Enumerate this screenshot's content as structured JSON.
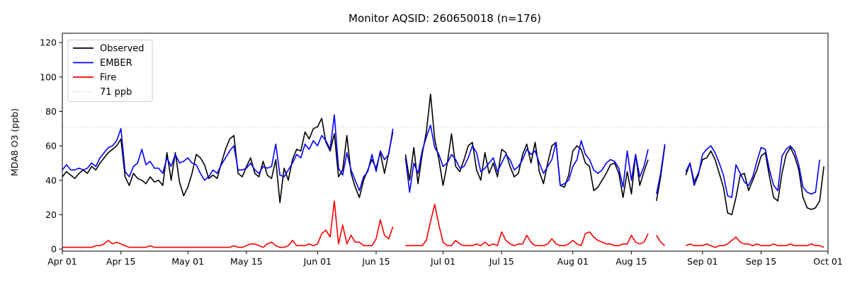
{
  "chart_data": {
    "type": "line",
    "title": "Monitor AQSID: 260650018 (n=176)",
    "ylabel": "MDA8 O3 (ppb)",
    "xlabel": "",
    "yticks": [
      0,
      20,
      40,
      60,
      80,
      100,
      120
    ],
    "ylim": [
      -1.2,
      125.4
    ],
    "x_total_days": 183,
    "xticks": [
      {
        "label": "Apr 01",
        "day": 0
      },
      {
        "label": "Apr 15",
        "day": 14
      },
      {
        "label": "May 01",
        "day": 30
      },
      {
        "label": "May 15",
        "day": 44
      },
      {
        "label": "Jun 01",
        "day": 61
      },
      {
        "label": "Jun 15",
        "day": 75
      },
      {
        "label": "Jul 01",
        "day": 91
      },
      {
        "label": "Jul 15",
        "day": 105
      },
      {
        "label": "Aug 01",
        "day": 122
      },
      {
        "label": "Aug 15",
        "day": 136
      },
      {
        "label": "Sep 01",
        "day": 153
      },
      {
        "label": "Sep 15",
        "day": 167
      },
      {
        "label": "Oct 01",
        "day": 183
      }
    ],
    "threshold": {
      "label": "71 ppb",
      "value": 71,
      "color": "#d3d3d3",
      "style": "dotted"
    },
    "legend": {
      "position": "upper-left",
      "entries": [
        "Observed",
        "EMBER",
        "Fire",
        "71 ppb"
      ]
    },
    "grid": false,
    "series": [
      {
        "name": "Observed",
        "color": "#000000",
        "values": [
          42,
          45,
          43,
          41,
          44,
          46,
          44,
          48,
          46,
          50,
          53,
          56,
          58,
          60,
          64,
          42,
          37,
          44,
          41,
          40,
          38,
          42,
          39,
          40,
          37,
          56,
          40,
          56,
          39,
          31,
          36,
          44,
          55,
          53,
          49,
          41,
          43,
          41,
          50,
          58,
          64,
          66,
          44,
          42,
          48,
          53,
          44,
          42,
          51,
          43,
          41,
          52,
          27,
          47,
          40,
          52,
          58,
          57,
          68,
          64,
          70,
          71,
          76,
          62,
          57,
          67,
          42,
          46,
          66,
          44,
          36,
          30,
          40,
          46,
          52,
          47,
          56,
          44,
          56,
          68,
          null,
          null,
          55,
          40,
          59,
          38,
          55,
          68,
          90,
          64,
          52,
          37,
          50,
          67,
          48,
          45,
          52,
          60,
          62,
          46,
          40,
          56,
          44,
          50,
          42,
          58,
          56,
          48,
          42,
          44,
          55,
          61,
          50,
          62,
          45,
          38,
          50,
          60,
          62,
          37,
          36,
          43,
          57,
          60,
          58,
          50,
          48,
          34,
          36,
          40,
          44,
          49,
          50,
          44,
          30,
          45,
          32,
          55,
          37,
          45,
          52,
          null,
          28,
          42,
          60,
          null,
          null,
          null,
          null,
          43,
          50,
          39,
          44,
          52,
          53,
          57,
          52,
          44,
          36,
          21,
          20,
          30,
          43,
          44,
          34,
          40,
          46,
          54,
          56,
          42,
          30,
          28,
          44,
          55,
          59,
          54,
          46,
          30,
          24,
          23,
          24,
          28,
          48
        ]
      },
      {
        "name": "EMBER",
        "color": "#0000ff",
        "values": [
          46,
          49,
          46,
          46,
          47,
          46,
          47,
          50,
          48,
          53,
          56,
          59,
          60,
          63,
          70,
          45,
          42,
          48,
          50,
          58,
          49,
          51,
          47,
          47,
          44,
          53,
          48,
          55,
          50,
          51,
          53,
          50,
          49,
          44,
          40,
          42,
          46,
          44,
          49,
          53,
          57,
          60,
          46,
          46,
          47,
          50,
          46,
          44,
          48,
          47,
          48,
          61,
          43,
          42,
          46,
          50,
          55,
          53,
          61,
          58,
          63,
          60,
          66,
          63,
          58,
          78,
          47,
          43,
          56,
          46,
          40,
          34,
          42,
          45,
          55,
          45,
          57,
          52,
          55,
          70,
          null,
          null,
          53,
          33,
          50,
          44,
          57,
          65,
          72,
          59,
          55,
          48,
          50,
          55,
          52,
          47,
          48,
          53,
          60,
          56,
          45,
          47,
          50,
          53,
          45,
          50,
          55,
          52,
          46,
          48,
          52,
          58,
          55,
          57,
          50,
          44,
          48,
          52,
          62,
          37,
          38,
          40,
          48,
          52,
          63,
          55,
          52,
          46,
          44,
          46,
          50,
          52,
          51,
          47,
          36,
          57,
          40,
          55,
          42,
          48,
          58,
          null,
          32,
          44,
          61,
          null,
          null,
          null,
          null,
          45,
          50,
          37,
          43,
          55,
          58,
          60,
          56,
          50,
          43,
          31,
          30,
          49,
          44,
          39,
          37,
          42,
          51,
          59,
          58,
          46,
          37,
          34,
          54,
          58,
          60,
          57,
          49,
          36,
          33,
          32,
          33,
          52,
          null
        ]
      },
      {
        "name": "Fire",
        "color": "#ff0000",
        "values": [
          1,
          1,
          1,
          1,
          1,
          1,
          1,
          1,
          2,
          2,
          3,
          5,
          3,
          4,
          3,
          2,
          1,
          1,
          1,
          1,
          1,
          2,
          1,
          1,
          1,
          1,
          1,
          1,
          1,
          1,
          1,
          1,
          1,
          1,
          1,
          1,
          1,
          1,
          1,
          1,
          1,
          2,
          1,
          1,
          2,
          3,
          3,
          2,
          1,
          3,
          4,
          2,
          1,
          1,
          2,
          5,
          2,
          2,
          2,
          3,
          2,
          3,
          9,
          11,
          7,
          28,
          3,
          14,
          3,
          8,
          4,
          4,
          2,
          2,
          2,
          6,
          17,
          8,
          6,
          13,
          null,
          null,
          2,
          2,
          2,
          2,
          2,
          5,
          16,
          26,
          14,
          4,
          2,
          2,
          5,
          3,
          2,
          2,
          2,
          3,
          2,
          4,
          2,
          3,
          2,
          10,
          5,
          3,
          2,
          3,
          3,
          8,
          4,
          2,
          2,
          2,
          3,
          6,
          3,
          2,
          2,
          3,
          5,
          3,
          2,
          9,
          10,
          7,
          5,
          4,
          3,
          3,
          2,
          2,
          3,
          3,
          8,
          4,
          3,
          4,
          9,
          null,
          8,
          4,
          2,
          null,
          null,
          null,
          null,
          2,
          3,
          2,
          2,
          2,
          3,
          2,
          1,
          2,
          2,
          3,
          5,
          7,
          4,
          3,
          3,
          2,
          3,
          2,
          2,
          2,
          3,
          2,
          2,
          2,
          3,
          2,
          2,
          2,
          2,
          3,
          2,
          2,
          1
        ]
      }
    ]
  }
}
